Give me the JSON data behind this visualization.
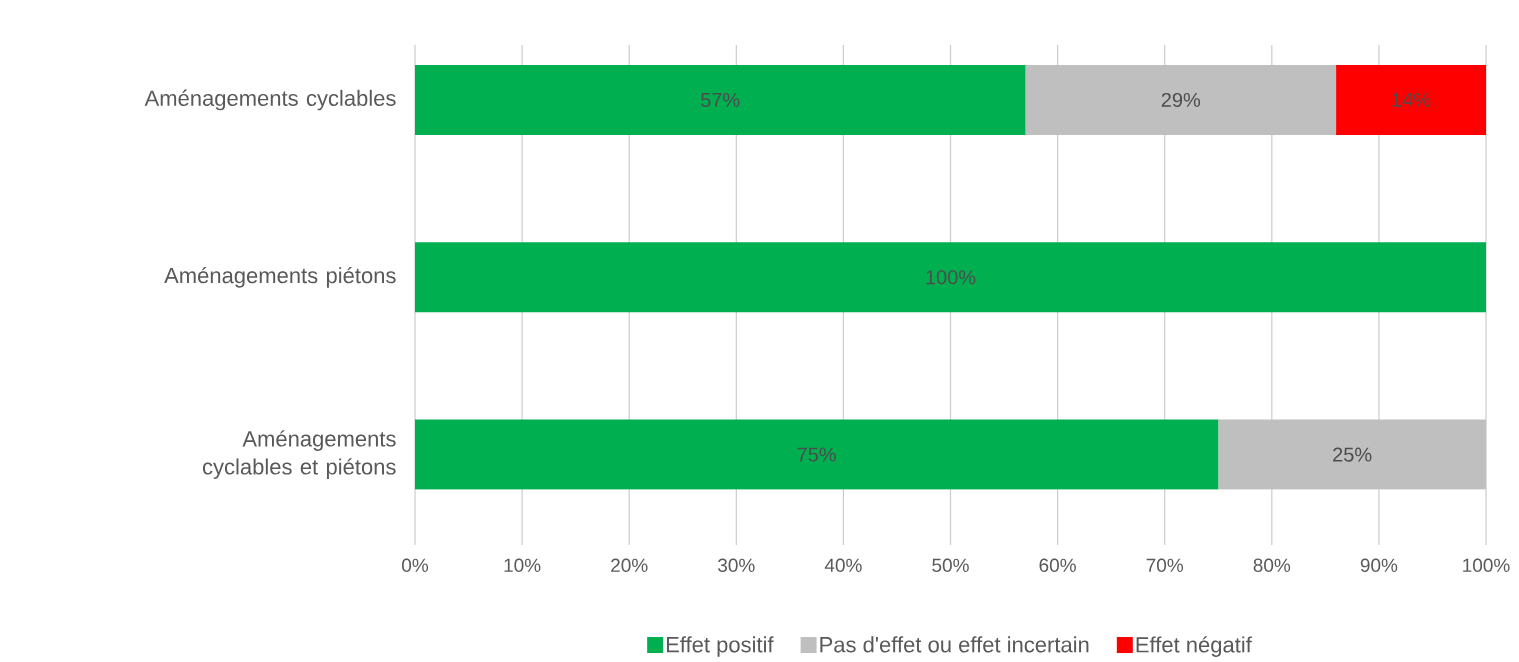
{
  "chart_data": {
    "type": "bar",
    "orientation": "horizontal",
    "stacked": true,
    "categories": [
      "Aménagements cyclables",
      "Aménagements piétons",
      "Aménagements cyclables et piétons"
    ],
    "series": [
      {
        "name": "Effet positif",
        "color": "#00b050",
        "values": [
          57,
          100,
          75
        ],
        "value_labels": [
          "57%",
          "100%",
          "75%"
        ]
      },
      {
        "name": "Pas d'effet ou effet incertain",
        "color": "#bfbfbf",
        "values": [
          29,
          null,
          25
        ],
        "value_labels": [
          "29%",
          null,
          "25%"
        ]
      },
      {
        "name": "Effet négatif",
        "color": "#ff0000",
        "values": [
          14,
          null,
          null
        ],
        "value_labels": [
          "14%",
          null,
          null
        ]
      }
    ],
    "xlim": [
      0,
      100
    ],
    "xticks": [
      {
        "value": 0,
        "label": "0%"
      },
      {
        "value": 10,
        "label": "10%"
      },
      {
        "value": 20,
        "label": "20%"
      },
      {
        "value": 30,
        "label": "30%"
      },
      {
        "value": 40,
        "label": "40%"
      },
      {
        "value": 50,
        "label": "50%"
      },
      {
        "value": 60,
        "label": "60%"
      },
      {
        "value": 70,
        "label": "70%"
      },
      {
        "value": 80,
        "label": "80%"
      },
      {
        "value": 90,
        "label": "90%"
      },
      {
        "value": 100,
        "label": "100%"
      }
    ],
    "grid": "x",
    "legend": "bottom"
  }
}
